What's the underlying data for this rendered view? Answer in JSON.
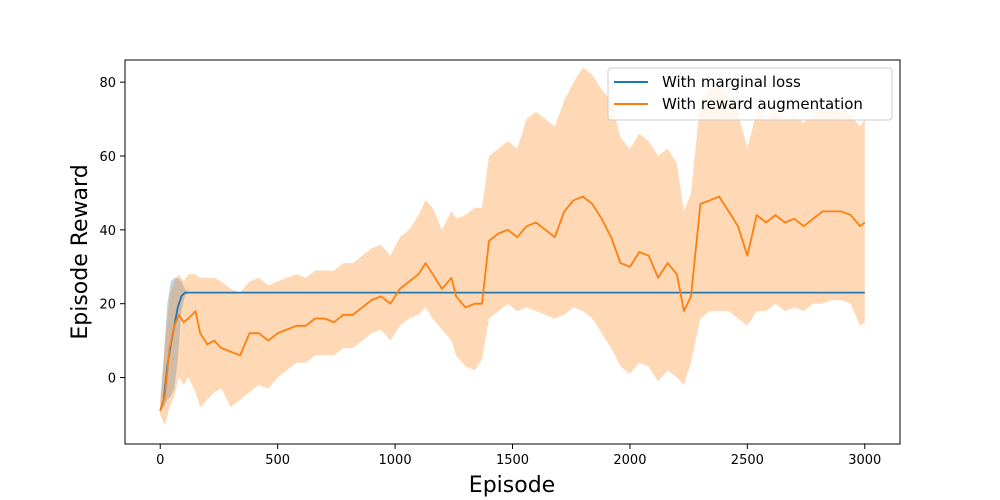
{
  "chart_data": {
    "type": "line",
    "xlabel": "Episode",
    "ylabel": "Episode Reward",
    "xlim": [
      -150,
      3150
    ],
    "ylim": [
      -18,
      86
    ],
    "xticks": [
      0,
      500,
      1000,
      1500,
      2000,
      2500,
      3000
    ],
    "yticks": [
      0,
      20,
      40,
      60,
      80
    ],
    "grid": false,
    "legend_position": "top-right",
    "series": [
      {
        "name": "With marginal loss",
        "color": "#1f77b4",
        "band_color": "#1f77b4",
        "x": [
          0,
          15,
          30,
          45,
          60,
          75,
          90,
          105,
          120,
          200,
          500,
          1000,
          1500,
          2000,
          2500,
          3000
        ],
        "y": [
          -9,
          -6,
          3,
          9,
          14,
          19,
          22,
          23,
          23,
          23,
          23,
          23,
          23,
          23,
          23,
          23
        ],
        "lower": [
          -9,
          -8,
          -6,
          -5,
          -3,
          5,
          18,
          22,
          23,
          23,
          23,
          23,
          23,
          23,
          23,
          23
        ],
        "upper": [
          -8,
          5,
          20,
          26,
          27,
          27,
          26,
          24,
          23,
          23,
          23,
          23,
          23,
          23,
          23,
          23
        ]
      },
      {
        "name": "With reward augmentation",
        "color": "#ff7f0e",
        "band_color": "#ff7f0e",
        "x": [
          0,
          20,
          40,
          60,
          80,
          100,
          120,
          150,
          170,
          200,
          230,
          260,
          300,
          340,
          380,
          420,
          460,
          500,
          540,
          580,
          620,
          660,
          700,
          740,
          780,
          820,
          860,
          900,
          940,
          980,
          1020,
          1060,
          1100,
          1130,
          1160,
          1200,
          1240,
          1260,
          1300,
          1340,
          1370,
          1400,
          1440,
          1480,
          1520,
          1560,
          1600,
          1640,
          1680,
          1720,
          1760,
          1800,
          1840,
          1880,
          1920,
          1960,
          2000,
          2040,
          2080,
          2120,
          2160,
          2200,
          2230,
          2260,
          2300,
          2340,
          2380,
          2420,
          2460,
          2500,
          2540,
          2580,
          2620,
          2660,
          2700,
          2740,
          2780,
          2820,
          2860,
          2900,
          2940,
          2980,
          3000
        ],
        "y": [
          -9,
          -5,
          8,
          14,
          17,
          15,
          16,
          18,
          12,
          9,
          10,
          8,
          7,
          6,
          12,
          12,
          10,
          12,
          13,
          14,
          14,
          16,
          16,
          15,
          17,
          17,
          19,
          21,
          22,
          20,
          24,
          26,
          28,
          31,
          28,
          24,
          27,
          22,
          19,
          20,
          20,
          37,
          39,
          40,
          38,
          41,
          42,
          40,
          38,
          45,
          48,
          49,
          47,
          43,
          38,
          31,
          30,
          34,
          33,
          27,
          31,
          28,
          18,
          22,
          47,
          48,
          49,
          45,
          41,
          33,
          44,
          42,
          44,
          42,
          43,
          41,
          43,
          45,
          45,
          45,
          44,
          41,
          42
        ],
        "lower": [
          -10,
          -13,
          -8,
          -5,
          0,
          -2,
          0,
          -4,
          -8,
          -6,
          -4,
          -3,
          -8,
          -6,
          -4,
          -2,
          -3,
          0,
          2,
          4,
          4,
          6,
          6,
          6,
          8,
          8,
          10,
          12,
          13,
          10,
          14,
          16,
          17,
          19,
          16,
          13,
          10,
          6,
          3,
          2,
          5,
          16,
          18,
          20,
          18,
          19,
          18,
          17,
          16,
          17,
          19,
          18,
          16,
          12,
          8,
          3,
          1,
          4,
          3,
          -1,
          2,
          0,
          -2,
          4,
          16,
          18,
          18,
          18,
          16,
          14,
          18,
          18,
          20,
          18,
          19,
          18,
          20,
          20,
          21,
          21,
          20,
          14,
          15
        ],
        "upper": [
          -6,
          10,
          22,
          26,
          28,
          26,
          28,
          28,
          27,
          27,
          27,
          26,
          24,
          23,
          26,
          27,
          25,
          26,
          27,
          28,
          27,
          29,
          29,
          29,
          31,
          31,
          33,
          35,
          36,
          33,
          38,
          40,
          44,
          48,
          46,
          40,
          45,
          43,
          44,
          46,
          46,
          60,
          62,
          64,
          62,
          70,
          72,
          70,
          68,
          75,
          80,
          84,
          82,
          78,
          75,
          65,
          62,
          66,
          64,
          60,
          62,
          58,
          45,
          50,
          75,
          78,
          80,
          76,
          72,
          62,
          72,
          70,
          72,
          70,
          71,
          69,
          71,
          73,
          72,
          72,
          71,
          68,
          70
        ]
      }
    ]
  }
}
